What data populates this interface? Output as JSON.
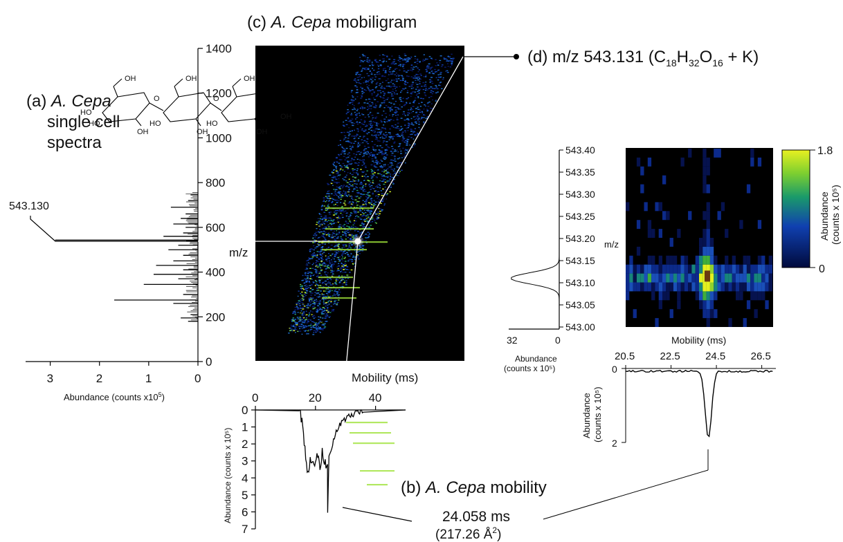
{
  "colors": {
    "heat_low": "#000a3c",
    "heat_mid": "#1a9a6a",
    "heat_high": "#e8f020",
    "line": "#000000",
    "background": "#ffffff"
  },
  "chart_data": [
    {
      "id": "a",
      "type": "bar",
      "orientation": "horizontal",
      "title_prefix": "(a)",
      "title_italic": "A. Cepa",
      "title_rest": [
        "single cell",
        "spectra"
      ],
      "xlabel": "Abundance (counts x10⁵)",
      "ylabel": "m/z",
      "xlim": [
        3.5,
        0
      ],
      "ylim": [
        0,
        1400
      ],
      "xticks": [
        "3",
        "2",
        "1",
        "0"
      ],
      "yticks": [
        "0",
        "200",
        "400",
        "600",
        "800",
        "1000",
        "1200",
        "1400"
      ],
      "peaks_mz": [
        180,
        195,
        210,
        260,
        275,
        300,
        345,
        370,
        390,
        410,
        430,
        450,
        475,
        500,
        520,
        543,
        560,
        575,
        600,
        615,
        640,
        660,
        690,
        720,
        745
      ],
      "peaks_abundance": [
        0.2,
        0.35,
        0.15,
        0.5,
        1.7,
        0.3,
        1.1,
        0.4,
        0.9,
        0.3,
        0.85,
        0.5,
        0.3,
        0.6,
        0.4,
        2.9,
        0.7,
        0.3,
        0.25,
        0.5,
        0.35,
        0.25,
        0.55,
        0.2,
        0.15
      ],
      "annotation": "543.130"
    },
    {
      "id": "c",
      "type": "heatmap",
      "title_prefix": "(c)",
      "title_italic": "A. Cepa",
      "title_rest": "mobiligram",
      "xlabel": "Mobility (ms)",
      "ylabel": "m/z",
      "xticks": [
        "0",
        "20",
        "40"
      ],
      "xlim": [
        0,
        50
      ],
      "ylim": [
        0,
        1400
      ]
    },
    {
      "id": "b",
      "type": "line",
      "title_prefix": "(b)",
      "title_italic": "A. Cepa",
      "title_rest": "mobility",
      "xlabel": "Mobility (ms)",
      "ylabel": "Abundance (counts x 10⁵)",
      "xlim": [
        0,
        50
      ],
      "ylim": [
        0,
        7
      ],
      "yticks": [
        "0",
        "1",
        "2",
        "3",
        "4",
        "5",
        "6",
        "7"
      ],
      "x": [
        10,
        15,
        16,
        17,
        18,
        19,
        20,
        21,
        22,
        23,
        23.8,
        24.058,
        24.4,
        25,
        26,
        27,
        28,
        30,
        32,
        34,
        36,
        40,
        45,
        50
      ],
      "y": [
        0,
        0.1,
        1.0,
        2.5,
        3.2,
        3.8,
        3.6,
        3.3,
        3.0,
        2.9,
        3.4,
        6.05,
        2.7,
        2.6,
        2.2,
        1.6,
        1.0,
        0.5,
        0.2,
        0.1,
        0.05,
        0.02,
        0,
        0
      ],
      "annotation_value": "24.058 ms",
      "annotation_ccs": "(217.26  Å²)"
    },
    {
      "id": "d",
      "type": "heatmap",
      "title": "(d) m/z 543.131 (C",
      "formula": {
        "c": "18",
        "h": "32",
        "o": "16",
        "rest": " + K)"
      },
      "h_label": "H",
      "o_label": "O",
      "xlabel": "Mobility (ms)",
      "ylabel": "m/z",
      "xticks": [
        "20.5",
        "22.5",
        "24.5",
        "26.5"
      ],
      "yticks": [
        "543.00",
        "543.05",
        "543.10",
        "543.15",
        "543.20",
        "543.25",
        "543.30",
        "543.35",
        "543.40"
      ],
      "xlim": [
        20.5,
        27.0
      ],
      "ylim": [
        543.0,
        543.4
      ],
      "colorbar_ticks": [
        "0",
        "1.8"
      ],
      "colorbar_label": "Abundance (counts x 10⁵)"
    },
    {
      "id": "d-spectrum",
      "type": "line",
      "xlabel": "Abundance (counts x 10⁵)",
      "xticks": [
        "32",
        "0"
      ],
      "peak_mz": 543.11,
      "peak_abundance": 32
    },
    {
      "id": "d-mobility",
      "type": "line",
      "ylabel": "Abundance (counts x 10⁵)",
      "yticks": [
        "0",
        "2"
      ],
      "x": [
        20.5,
        21,
        22,
        23,
        23.8,
        24.1,
        24.3,
        24.5,
        24.7,
        25,
        25.5,
        26,
        26.5,
        27
      ],
      "y": [
        0.05,
        0.08,
        0.06,
        0.08,
        0.3,
        1.85,
        1.2,
        0.3,
        0.1,
        0.06,
        0.08,
        0.05,
        0.07,
        0.05
      ]
    }
  ],
  "labels": {
    "a_title_prefix": "(a) ",
    "a_title_italic": "A. Cepa",
    "a_line2": "single cell",
    "a_line3": "spectra",
    "a_peak": "543.130",
    "a_xlabel": "Abundance (counts x10",
    "a_xlabel_sup": "5",
    "a_xlabel_end": ")",
    "c_prefix": "(c) ",
    "c_italic": "A. Cepa",
    "c_rest": " mobiligram",
    "c_mz": "m/z",
    "c_xlabel": "Mobility (ms)",
    "b_prefix": "(b) ",
    "b_italic": "A. Cepa",
    "b_rest": " mobility",
    "b_value": "24.058 ms",
    "b_ccs": "(217.26  Å",
    "b_ccs_sup": "2",
    "b_ccs_end": ")",
    "b_ylabel": "Abundance (counts x 10⁵)",
    "d_title": "(d) m/z 543.131 (C",
    "d_c": "18",
    "d_h": "H",
    "d_hn": "32",
    "d_o": "O",
    "d_on": "16",
    "d_end": " + K)",
    "d_mz": "m/z",
    "d_xlabel": "Mobility (ms)",
    "d_spec_xlabel1": "Abundance",
    "d_spec_xlabel2": "(counts x 10⁵)",
    "d_mob_ylabel1": "Abundance",
    "d_mob_ylabel2": "(counts x 10⁵)",
    "cb_label1": "Abundance",
    "cb_label2": "(counts x 10⁵)",
    "oh": "OH",
    "ho": "HO",
    "o": "O"
  }
}
